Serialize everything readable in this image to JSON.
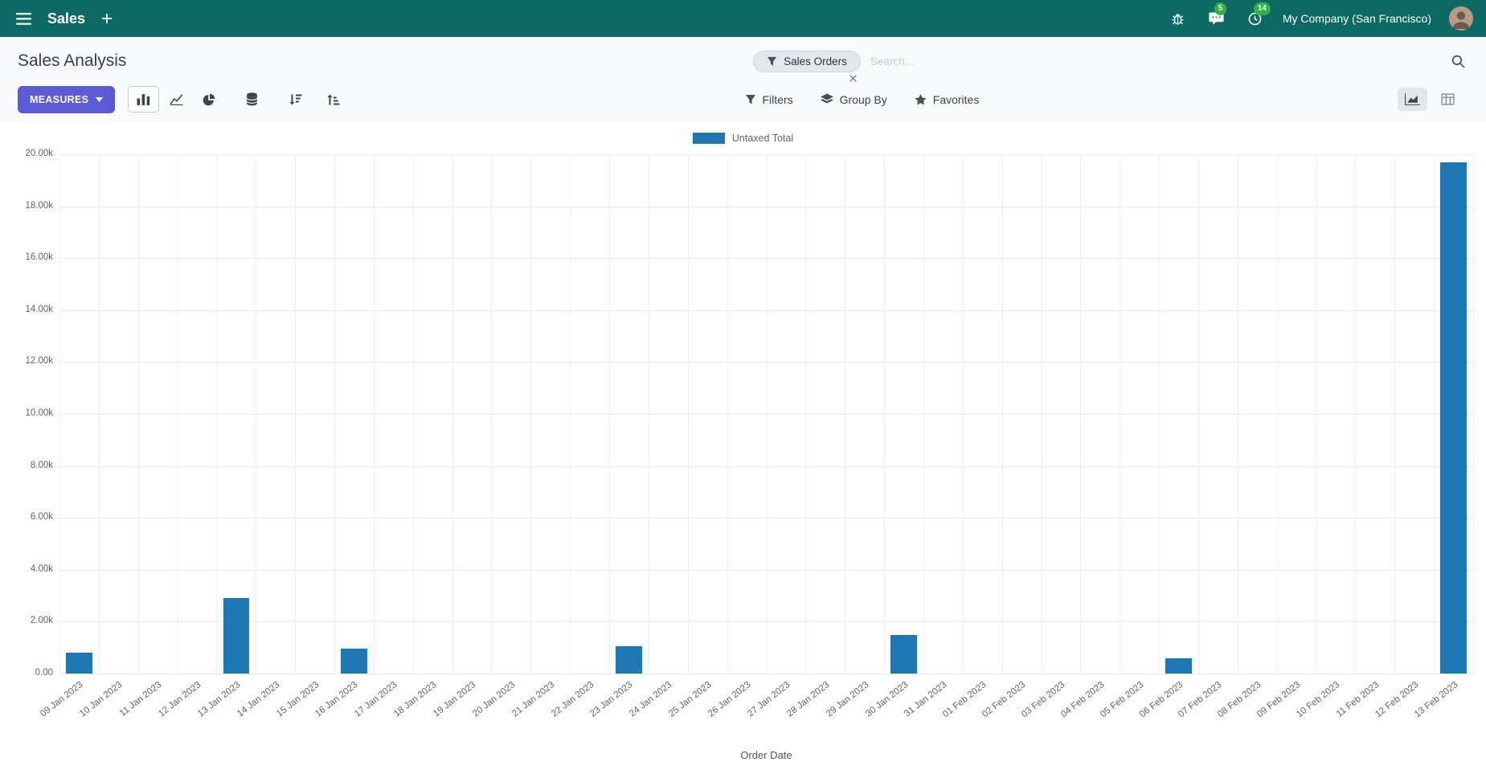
{
  "topbar": {
    "app_name": "Sales",
    "company": "My Company (San Francisco)",
    "messages_badge": "5",
    "activities_badge": "14"
  },
  "control_panel": {
    "title": "Sales Analysis",
    "facet_label": "Sales Orders",
    "search_placeholder": "Search...",
    "measures_label": "MEASURES",
    "filters_label": "Filters",
    "group_by_label": "Group By",
    "favorites_label": "Favorites"
  },
  "colors": {
    "topbar_bg": "#0d6963",
    "accent": "#5c5bd6",
    "bar": "#1f77b4",
    "badge": "#2fb344"
  },
  "chart_data": {
    "type": "bar",
    "title": "",
    "xlabel": "Order Date",
    "ylabel": "",
    "ylim": [
      0,
      20000
    ],
    "y_ticks": [
      "0.00",
      "2.00k",
      "4.00k",
      "6.00k",
      "8.00k",
      "10.00k",
      "12.00k",
      "14.00k",
      "16.00k",
      "18.00k",
      "20.00k"
    ],
    "grid": true,
    "legend_position": "top",
    "categories": [
      "09 Jan 2023",
      "10 Jan 2023",
      "11 Jan 2023",
      "12 Jan 2023",
      "13 Jan 2023",
      "14 Jan 2023",
      "15 Jan 2023",
      "16 Jan 2023",
      "17 Jan 2023",
      "18 Jan 2023",
      "19 Jan 2023",
      "20 Jan 2023",
      "21 Jan 2023",
      "22 Jan 2023",
      "23 Jan 2023",
      "24 Jan 2023",
      "25 Jan 2023",
      "26 Jan 2023",
      "27 Jan 2023",
      "28 Jan 2023",
      "29 Jan 2023",
      "30 Jan 2023",
      "31 Jan 2023",
      "01 Feb 2023",
      "02 Feb 2023",
      "03 Feb 2023",
      "04 Feb 2023",
      "05 Feb 2023",
      "06 Feb 2023",
      "07 Feb 2023",
      "08 Feb 2023",
      "09 Feb 2023",
      "10 Feb 2023",
      "11 Feb 2023",
      "12 Feb 2023",
      "13 Feb 2023"
    ],
    "series": [
      {
        "name": "Untaxed Total",
        "values": [
          800,
          0,
          0,
          0,
          2900,
          0,
          0,
          950,
          0,
          0,
          0,
          0,
          0,
          0,
          1050,
          0,
          0,
          0,
          0,
          0,
          0,
          1500,
          0,
          0,
          0,
          0,
          0,
          0,
          600,
          0,
          0,
          0,
          0,
          0,
          0,
          19700
        ]
      }
    ]
  }
}
